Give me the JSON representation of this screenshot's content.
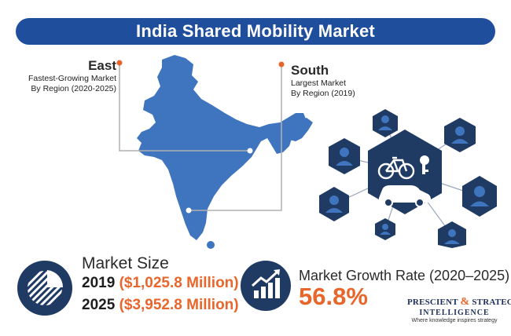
{
  "title": "India Shared Mobility Market",
  "regions": {
    "east": {
      "name": "East",
      "line1": "Fastest-Growing Market",
      "line2": "By Region (2020-2025)"
    },
    "south": {
      "name": "South",
      "line1": "Largest Market",
      "line2": "By Region (2019)"
    }
  },
  "market_size": {
    "title": "Market Size",
    "rows": [
      {
        "year": "2019",
        "value": "($1,025.8 Million)"
      },
      {
        "year": "2025",
        "value": "($3,952.8 Million)"
      }
    ]
  },
  "growth": {
    "title": "Market Growth Rate (2020–2025)",
    "value": "56.8%"
  },
  "logo": {
    "left": "PRESCIENT",
    "amp": "&",
    "right": "STRATEGIC",
    "line2": "INTELLIGENCE",
    "tagline": "Where knowledge inspires strategy"
  },
  "icons": [
    "bicycle-icon",
    "car-icon",
    "key-icon",
    "user-icon",
    "pie-chart-icon",
    "growth-chart-icon"
  ],
  "colors": {
    "navy": "#1f4e9c",
    "map": "#3f74be",
    "accent": "#e8662b",
    "dark": "#1f3b63"
  }
}
